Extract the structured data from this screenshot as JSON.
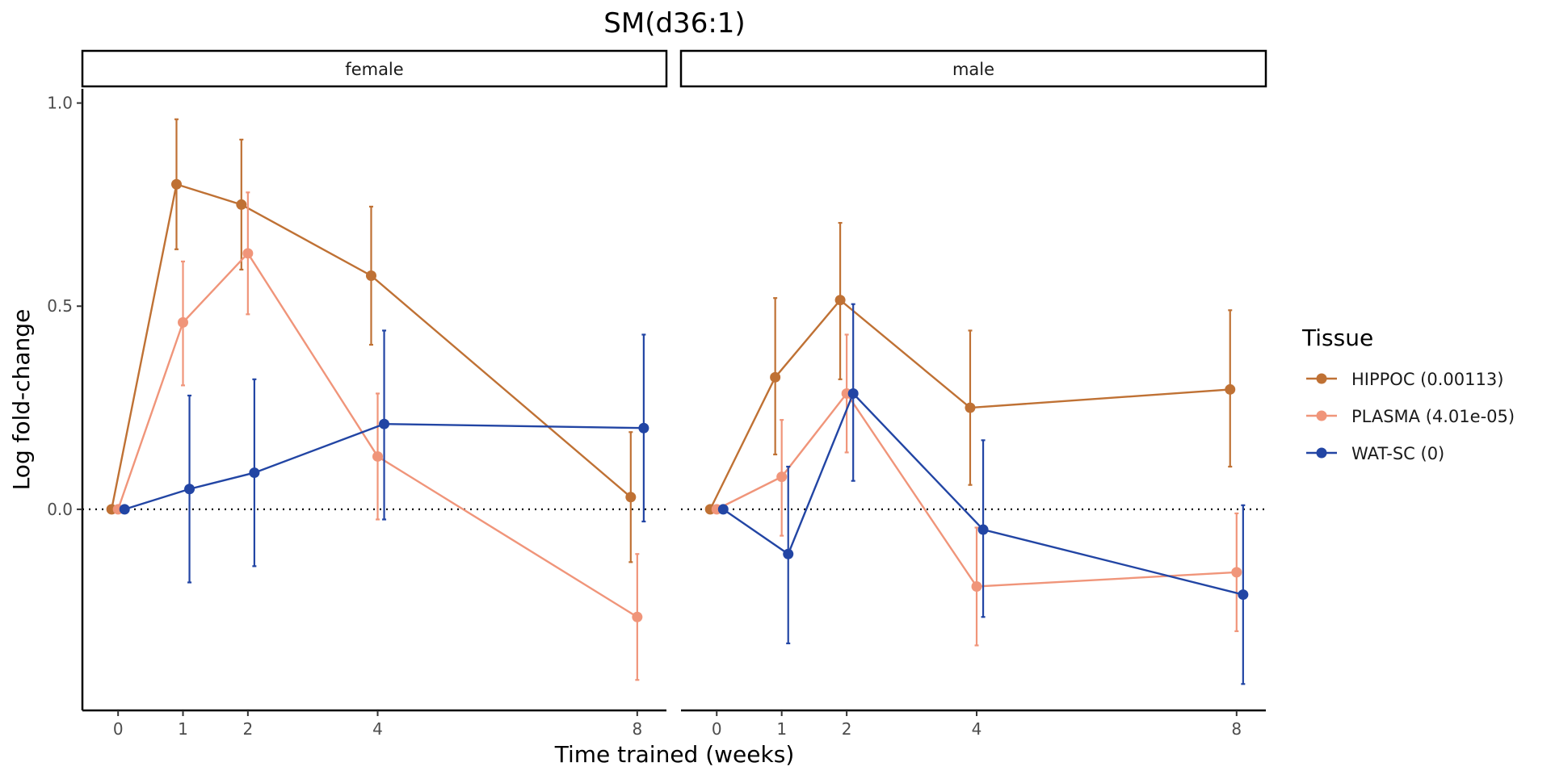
{
  "chart_data": {
    "type": "line",
    "title": "SM(d36:1)",
    "xlabel": "Time trained (weeks)",
    "ylabel": "Log fold-change",
    "x_ticks": [
      0,
      1,
      2,
      4,
      8
    ],
    "y_ticks": [
      0.0,
      0.5,
      1.0
    ],
    "y_tick_labels": [
      "0.0",
      "0.5",
      "1.0"
    ],
    "xlim": [
      -0.55,
      8.45
    ],
    "ylim": [
      -0.495,
      1.035
    ],
    "reference_line": 0,
    "legend_title": "Tissue",
    "legend_position": "right",
    "grid": false,
    "panels": [
      {
        "name": "female",
        "series": [
          {
            "name": "HIPPOC (0.00113)",
            "color": "#BF7134",
            "points": [
              {
                "x": 0,
                "y": 0.0
              },
              {
                "x": 1,
                "y": 0.8,
                "lo": 0.64,
                "hi": 0.96
              },
              {
                "x": 2,
                "y": 0.75,
                "lo": 0.59,
                "hi": 0.91
              },
              {
                "x": 4,
                "y": 0.575,
                "lo": 0.405,
                "hi": 0.745
              },
              {
                "x": 8,
                "y": 0.03,
                "lo": -0.13,
                "hi": 0.19
              }
            ]
          },
          {
            "name": "PLASMA (4.01e-05)",
            "color": "#F0957A",
            "points": [
              {
                "x": 0,
                "y": 0.0
              },
              {
                "x": 1,
                "y": 0.46,
                "lo": 0.305,
                "hi": 0.61
              },
              {
                "x": 2,
                "y": 0.63,
                "lo": 0.48,
                "hi": 0.78
              },
              {
                "x": 4,
                "y": 0.13,
                "lo": -0.025,
                "hi": 0.285
              },
              {
                "x": 8,
                "y": -0.265,
                "lo": -0.42,
                "hi": -0.11
              }
            ]
          },
          {
            "name": "WAT-SC (0)",
            "color": "#2245A4",
            "points": [
              {
                "x": 0,
                "y": 0.0
              },
              {
                "x": 1,
                "y": 0.05,
                "lo": -0.18,
                "hi": 0.28
              },
              {
                "x": 2,
                "y": 0.09,
                "lo": -0.14,
                "hi": 0.32
              },
              {
                "x": 4,
                "y": 0.21,
                "lo": -0.025,
                "hi": 0.44
              },
              {
                "x": 8,
                "y": 0.2,
                "lo": -0.03,
                "hi": 0.43
              }
            ]
          }
        ]
      },
      {
        "name": "male",
        "series": [
          {
            "name": "HIPPOC (0.00113)",
            "color": "#BF7134",
            "points": [
              {
                "x": 0,
                "y": 0.0
              },
              {
                "x": 1,
                "y": 0.325,
                "lo": 0.135,
                "hi": 0.52
              },
              {
                "x": 2,
                "y": 0.515,
                "lo": 0.32,
                "hi": 0.705
              },
              {
                "x": 4,
                "y": 0.25,
                "lo": 0.06,
                "hi": 0.44
              },
              {
                "x": 8,
                "y": 0.295,
                "lo": 0.105,
                "hi": 0.49
              }
            ]
          },
          {
            "name": "PLASMA (4.01e-05)",
            "color": "#F0957A",
            "points": [
              {
                "x": 0,
                "y": 0.0
              },
              {
                "x": 1,
                "y": 0.08,
                "lo": -0.065,
                "hi": 0.22
              },
              {
                "x": 2,
                "y": 0.285,
                "lo": 0.14,
                "hi": 0.43
              },
              {
                "x": 4,
                "y": -0.19,
                "lo": -0.335,
                "hi": -0.045
              },
              {
                "x": 8,
                "y": -0.155,
                "lo": -0.3,
                "hi": -0.01
              }
            ]
          },
          {
            "name": "WAT-SC (0)",
            "color": "#2245A4",
            "points": [
              {
                "x": 0,
                "y": 0.0
              },
              {
                "x": 1,
                "y": -0.11,
                "lo": -0.33,
                "hi": 0.105
              },
              {
                "x": 2,
                "y": 0.285,
                "lo": 0.07,
                "hi": 0.505
              },
              {
                "x": 4,
                "y": -0.05,
                "lo": -0.265,
                "hi": 0.17
              },
              {
                "x": 8,
                "y": -0.21,
                "lo": -0.43,
                "hi": 0.01
              }
            ]
          }
        ]
      }
    ]
  }
}
